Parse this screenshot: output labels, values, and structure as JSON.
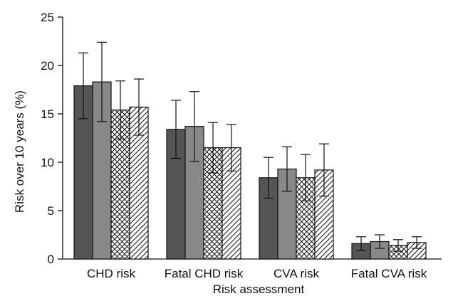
{
  "chart_data": {
    "type": "bar",
    "title": "",
    "xlabel": "Risk assessment",
    "ylabel": "Risk over 10 years (%)",
    "ylim": [
      0,
      25
    ],
    "yticks": [
      0,
      5,
      10,
      15,
      20,
      25
    ],
    "grid": false,
    "legend": "none",
    "categories": [
      "CHD risk",
      "Fatal CHD risk",
      "CVA risk",
      "Fatal CVA risk"
    ],
    "series": [
      {
        "fill": "dark-grey",
        "color": "#555555",
        "values": [
          17.9,
          13.4,
          8.4,
          1.6
        ],
        "error": [
          3.4,
          3.0,
          2.1,
          0.7
        ]
      },
      {
        "fill": "grey",
        "color": "#888888",
        "values": [
          18.3,
          13.7,
          9.3,
          1.8
        ],
        "error": [
          4.1,
          3.6,
          2.3,
          0.7
        ]
      },
      {
        "fill": "cross-hatch",
        "color": "#ffffff",
        "values": [
          15.4,
          11.5,
          8.4,
          1.4
        ],
        "error": [
          3.0,
          2.6,
          2.4,
          0.6
        ]
      },
      {
        "fill": "diagonal-hatch",
        "color": "#ffffff",
        "values": [
          15.7,
          11.5,
          9.2,
          1.7
        ],
        "error": [
          2.9,
          2.4,
          2.7,
          0.6
        ]
      }
    ]
  }
}
